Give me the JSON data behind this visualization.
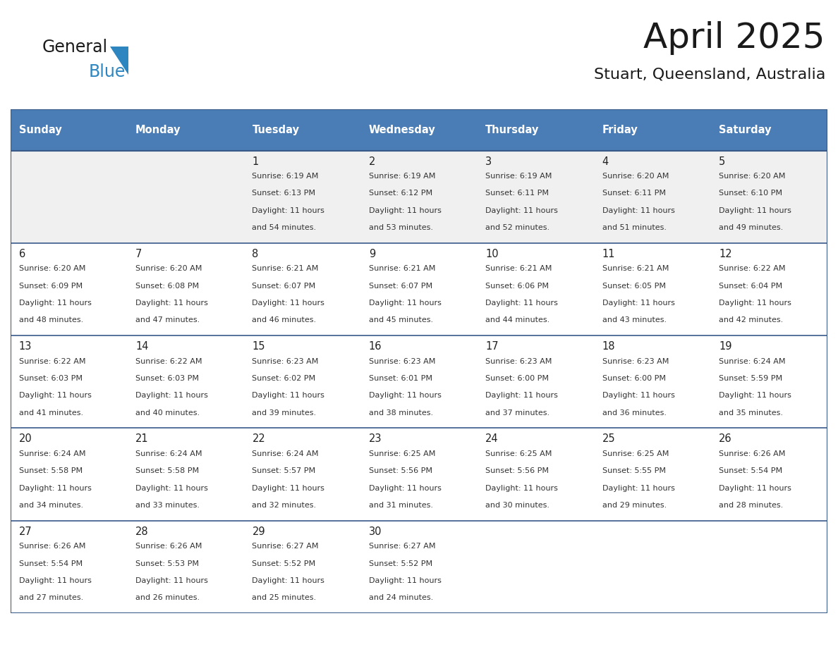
{
  "title": "April 2025",
  "subtitle": "Stuart, Queensland, Australia",
  "days_of_week": [
    "Sunday",
    "Monday",
    "Tuesday",
    "Wednesday",
    "Thursday",
    "Friday",
    "Saturday"
  ],
  "header_bg": "#4A7DB5",
  "header_text": "#FFFFFF",
  "row_bg_week1": "#F0F0F0",
  "row_bg_other": "#FFFFFF",
  "day_number_color": "#222222",
  "text_color": "#333333",
  "border_color": "#3A5A8A",
  "divider_color": "#3A5A8A",
  "calendar_data": [
    {
      "day": 1,
      "col": 2,
      "row": 0,
      "sunrise": "6:19 AM",
      "sunset": "6:13 PM",
      "daylight_h": "11 hours",
      "daylight_m": "54 minutes"
    },
    {
      "day": 2,
      "col": 3,
      "row": 0,
      "sunrise": "6:19 AM",
      "sunset": "6:12 PM",
      "daylight_h": "11 hours",
      "daylight_m": "53 minutes"
    },
    {
      "day": 3,
      "col": 4,
      "row": 0,
      "sunrise": "6:19 AM",
      "sunset": "6:11 PM",
      "daylight_h": "11 hours",
      "daylight_m": "52 minutes"
    },
    {
      "day": 4,
      "col": 5,
      "row": 0,
      "sunrise": "6:20 AM",
      "sunset": "6:11 PM",
      "daylight_h": "11 hours",
      "daylight_m": "51 minutes"
    },
    {
      "day": 5,
      "col": 6,
      "row": 0,
      "sunrise": "6:20 AM",
      "sunset": "6:10 PM",
      "daylight_h": "11 hours",
      "daylight_m": "49 minutes"
    },
    {
      "day": 6,
      "col": 0,
      "row": 1,
      "sunrise": "6:20 AM",
      "sunset": "6:09 PM",
      "daylight_h": "11 hours",
      "daylight_m": "48 minutes"
    },
    {
      "day": 7,
      "col": 1,
      "row": 1,
      "sunrise": "6:20 AM",
      "sunset": "6:08 PM",
      "daylight_h": "11 hours",
      "daylight_m": "47 minutes"
    },
    {
      "day": 8,
      "col": 2,
      "row": 1,
      "sunrise": "6:21 AM",
      "sunset": "6:07 PM",
      "daylight_h": "11 hours",
      "daylight_m": "46 minutes"
    },
    {
      "day": 9,
      "col": 3,
      "row": 1,
      "sunrise": "6:21 AM",
      "sunset": "6:07 PM",
      "daylight_h": "11 hours",
      "daylight_m": "45 minutes"
    },
    {
      "day": 10,
      "col": 4,
      "row": 1,
      "sunrise": "6:21 AM",
      "sunset": "6:06 PM",
      "daylight_h": "11 hours",
      "daylight_m": "44 minutes"
    },
    {
      "day": 11,
      "col": 5,
      "row": 1,
      "sunrise": "6:21 AM",
      "sunset": "6:05 PM",
      "daylight_h": "11 hours",
      "daylight_m": "43 minutes"
    },
    {
      "day": 12,
      "col": 6,
      "row": 1,
      "sunrise": "6:22 AM",
      "sunset": "6:04 PM",
      "daylight_h": "11 hours",
      "daylight_m": "42 minutes"
    },
    {
      "day": 13,
      "col": 0,
      "row": 2,
      "sunrise": "6:22 AM",
      "sunset": "6:03 PM",
      "daylight_h": "11 hours",
      "daylight_m": "41 minutes"
    },
    {
      "day": 14,
      "col": 1,
      "row": 2,
      "sunrise": "6:22 AM",
      "sunset": "6:03 PM",
      "daylight_h": "11 hours",
      "daylight_m": "40 minutes"
    },
    {
      "day": 15,
      "col": 2,
      "row": 2,
      "sunrise": "6:23 AM",
      "sunset": "6:02 PM",
      "daylight_h": "11 hours",
      "daylight_m": "39 minutes"
    },
    {
      "day": 16,
      "col": 3,
      "row": 2,
      "sunrise": "6:23 AM",
      "sunset": "6:01 PM",
      "daylight_h": "11 hours",
      "daylight_m": "38 minutes"
    },
    {
      "day": 17,
      "col": 4,
      "row": 2,
      "sunrise": "6:23 AM",
      "sunset": "6:00 PM",
      "daylight_h": "11 hours",
      "daylight_m": "37 minutes"
    },
    {
      "day": 18,
      "col": 5,
      "row": 2,
      "sunrise": "6:23 AM",
      "sunset": "6:00 PM",
      "daylight_h": "11 hours",
      "daylight_m": "36 minutes"
    },
    {
      "day": 19,
      "col": 6,
      "row": 2,
      "sunrise": "6:24 AM",
      "sunset": "5:59 PM",
      "daylight_h": "11 hours",
      "daylight_m": "35 minutes"
    },
    {
      "day": 20,
      "col": 0,
      "row": 3,
      "sunrise": "6:24 AM",
      "sunset": "5:58 PM",
      "daylight_h": "11 hours",
      "daylight_m": "34 minutes"
    },
    {
      "day": 21,
      "col": 1,
      "row": 3,
      "sunrise": "6:24 AM",
      "sunset": "5:58 PM",
      "daylight_h": "11 hours",
      "daylight_m": "33 minutes"
    },
    {
      "day": 22,
      "col": 2,
      "row": 3,
      "sunrise": "6:24 AM",
      "sunset": "5:57 PM",
      "daylight_h": "11 hours",
      "daylight_m": "32 minutes"
    },
    {
      "day": 23,
      "col": 3,
      "row": 3,
      "sunrise": "6:25 AM",
      "sunset": "5:56 PM",
      "daylight_h": "11 hours",
      "daylight_m": "31 minutes"
    },
    {
      "day": 24,
      "col": 4,
      "row": 3,
      "sunrise": "6:25 AM",
      "sunset": "5:56 PM",
      "daylight_h": "11 hours",
      "daylight_m": "30 minutes"
    },
    {
      "day": 25,
      "col": 5,
      "row": 3,
      "sunrise": "6:25 AM",
      "sunset": "5:55 PM",
      "daylight_h": "11 hours",
      "daylight_m": "29 minutes"
    },
    {
      "day": 26,
      "col": 6,
      "row": 3,
      "sunrise": "6:26 AM",
      "sunset": "5:54 PM",
      "daylight_h": "11 hours",
      "daylight_m": "28 minutes"
    },
    {
      "day": 27,
      "col": 0,
      "row": 4,
      "sunrise": "6:26 AM",
      "sunset": "5:54 PM",
      "daylight_h": "11 hours",
      "daylight_m": "27 minutes"
    },
    {
      "day": 28,
      "col": 1,
      "row": 4,
      "sunrise": "6:26 AM",
      "sunset": "5:53 PM",
      "daylight_h": "11 hours",
      "daylight_m": "26 minutes"
    },
    {
      "day": 29,
      "col": 2,
      "row": 4,
      "sunrise": "6:27 AM",
      "sunset": "5:52 PM",
      "daylight_h": "11 hours",
      "daylight_m": "25 minutes"
    },
    {
      "day": 30,
      "col": 3,
      "row": 4,
      "sunrise": "6:27 AM",
      "sunset": "5:52 PM",
      "daylight_h": "11 hours",
      "daylight_m": "24 minutes"
    }
  ],
  "logo_color_general": "#1a1a1a",
  "logo_color_blue": "#2E86C1",
  "logo_triangle_color": "#2E86C1",
  "title_color": "#1a1a1a",
  "subtitle_color": "#1a1a1a"
}
